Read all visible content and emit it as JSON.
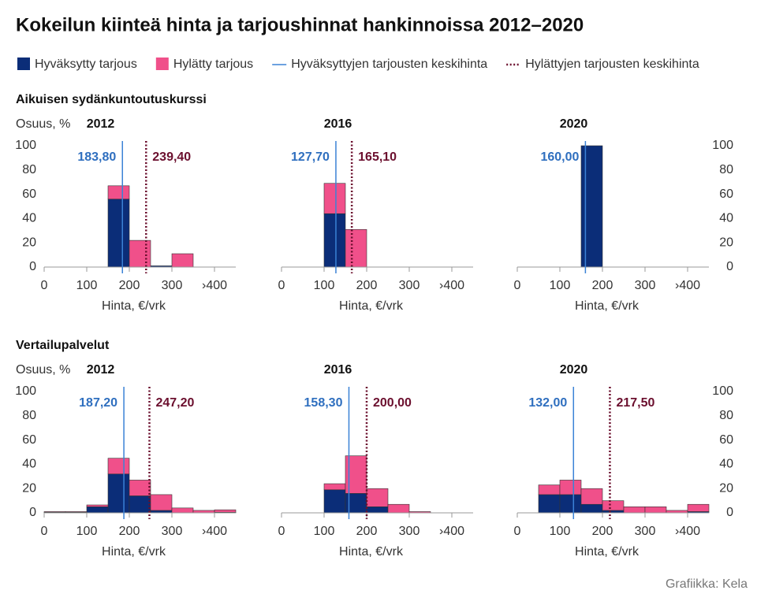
{
  "title": "Kokeilun kiinteä hinta ja tarjoushinnat hankinnoissa 2012–2020",
  "source": "Grafiikka: Kela",
  "chart_data": [
    {
      "type": "histogram",
      "section_title": "Aikuisen sydänkuntoutuskurssi",
      "title": "2012",
      "ylabel": "Osuus, %",
      "xlabel": "Hinta, €/vrk",
      "ytick_side": "left",
      "bins": [
        0,
        50,
        100,
        150,
        200,
        250,
        300,
        350,
        400,
        450
      ],
      "series": [
        {
          "name": "Hyväksytty tarjous",
          "color": "#0b2d78",
          "values": [
            0,
            0,
            0,
            56,
            0,
            1,
            0,
            0,
            0
          ]
        },
        {
          "name": "Hylätty tarjous",
          "color": "#f0508a",
          "values": [
            0,
            0,
            0,
            11,
            22,
            0,
            11,
            0,
            0
          ]
        }
      ],
      "reference_lines": [
        {
          "name": "Hyväksyttyjen tarjousten keskihinta",
          "value": 183.8,
          "label": "183,80",
          "color": "#3b82d6",
          "dotted": false
        },
        {
          "name": "Hylättyjen tarjousten keskihinta",
          "value": 239.4,
          "label": "239,40",
          "color": "#6b0f2e",
          "dotted": true
        }
      ],
      "xlim": [
        0,
        450
      ],
      "xticks": [
        0,
        100,
        200,
        300,
        {
          "value": 400,
          "label": "›400"
        }
      ],
      "ylim": [
        0,
        100
      ],
      "yticks": [
        0,
        20,
        40,
        60,
        80,
        100
      ]
    },
    {
      "type": "histogram",
      "title": "2016",
      "xlabel": "Hinta, €/vrk",
      "ytick_side": "none",
      "bins": [
        0,
        50,
        100,
        150,
        200,
        250,
        300,
        350,
        400,
        450
      ],
      "series": [
        {
          "name": "Hyväksytty tarjous",
          "color": "#0b2d78",
          "values": [
            0,
            0,
            44,
            0,
            0,
            0,
            0,
            0,
            0
          ]
        },
        {
          "name": "Hylätty tarjous",
          "color": "#f0508a",
          "values": [
            0,
            0,
            25,
            31,
            0,
            0,
            0,
            0,
            0
          ]
        }
      ],
      "reference_lines": [
        {
          "name": "Hyväksyttyjen tarjousten keskihinta",
          "value": 127.7,
          "label": "127,70",
          "color": "#3b82d6",
          "dotted": false
        },
        {
          "name": "Hylättyjen tarjousten keskihinta",
          "value": 165.1,
          "label": "165,10",
          "color": "#6b0f2e",
          "dotted": true
        }
      ],
      "xlim": [
        0,
        450
      ],
      "xticks": [
        0,
        100,
        200,
        300,
        {
          "value": 400,
          "label": "›400"
        }
      ],
      "ylim": [
        0,
        100
      ]
    },
    {
      "type": "histogram",
      "title": "2020",
      "xlabel": "Hinta, €/vrk",
      "ytick_side": "right",
      "bins": [
        0,
        50,
        100,
        150,
        200,
        250,
        300,
        350,
        400,
        450
      ],
      "series": [
        {
          "name": "Hyväksytty tarjous",
          "color": "#0b2d78",
          "values": [
            0,
            0,
            0,
            100,
            0,
            0,
            0,
            0,
            0
          ]
        }
      ],
      "reference_lines": [
        {
          "name": "Hyväksyttyjen tarjousten keskihinta",
          "value": 160,
          "label": "160,00",
          "color": "#3b82d6",
          "dotted": false
        }
      ],
      "xlim": [
        0,
        450
      ],
      "xticks": [
        0,
        100,
        200,
        300,
        {
          "value": 400,
          "label": "›400"
        }
      ],
      "ylim": [
        0,
        100
      ],
      "yticks": [
        0,
        20,
        40,
        60,
        80,
        100
      ]
    },
    {
      "type": "histogram",
      "section_title": "Vertailupalvelut",
      "title": "2012",
      "ylabel": "Osuus, %",
      "xlabel": "Hinta, €/vrk",
      "ytick_side": "left",
      "bins": [
        0,
        50,
        100,
        150,
        200,
        250,
        300,
        350,
        400,
        450
      ],
      "series": [
        {
          "name": "Hyväksytty tarjous",
          "color": "#0b2d78",
          "values": [
            0.5,
            0.5,
            5,
            32,
            14,
            2,
            0,
            0,
            0.5
          ]
        },
        {
          "name": "Hylätty tarjous",
          "color": "#f0508a",
          "values": [
            0.5,
            0.5,
            1.5,
            13,
            13,
            13,
            4,
            2,
            2
          ]
        }
      ],
      "reference_lines": [
        {
          "name": "Hyväksyttyjen tarjousten keskihinta",
          "value": 187.2,
          "label": "187,20",
          "color": "#3b82d6",
          "dotted": false
        },
        {
          "name": "Hylättyjen tarjousten keskihinta",
          "value": 247.2,
          "label": "247,20",
          "color": "#6b0f2e",
          "dotted": true
        }
      ],
      "xlim": [
        0,
        450
      ],
      "xticks": [
        0,
        100,
        200,
        300,
        {
          "value": 400,
          "label": "›400"
        }
      ],
      "ylim": [
        0,
        100
      ],
      "yticks": [
        0,
        20,
        40,
        60,
        80,
        100
      ]
    },
    {
      "type": "histogram",
      "title": "2016",
      "xlabel": "Hinta, €/vrk",
      "ytick_side": "none",
      "bins": [
        0,
        50,
        100,
        150,
        200,
        250,
        300,
        350,
        400,
        450
      ],
      "series": [
        {
          "name": "Hyväksytty tarjous",
          "color": "#0b2d78",
          "values": [
            0,
            0,
            19,
            16,
            5,
            0,
            0,
            0,
            0
          ]
        },
        {
          "name": "Hylätty tarjous",
          "color": "#f0508a",
          "values": [
            0,
            0,
            5,
            31,
            15,
            7,
            1,
            0,
            0
          ]
        }
      ],
      "reference_lines": [
        {
          "name": "Hyväksyttyjen tarjousten keskihinta",
          "value": 158.3,
          "label": "158,30",
          "color": "#3b82d6",
          "dotted": false
        },
        {
          "name": "Hylättyjen tarjousten keskihinta",
          "value": 200,
          "label": "200,00",
          "color": "#6b0f2e",
          "dotted": true
        }
      ],
      "xlim": [
        0,
        450
      ],
      "xticks": [
        0,
        100,
        200,
        300,
        {
          "value": 400,
          "label": "›400"
        }
      ],
      "ylim": [
        0,
        100
      ]
    },
    {
      "type": "histogram",
      "title": "2020",
      "xlabel": "Hinta, €/vrk",
      "ytick_side": "right",
      "bins": [
        0,
        50,
        100,
        150,
        200,
        250,
        300,
        350,
        400,
        450
      ],
      "series": [
        {
          "name": "Hyväksytty tarjous",
          "color": "#0b2d78",
          "values": [
            0,
            15,
            15,
            7,
            2,
            0,
            0,
            0,
            1
          ]
        },
        {
          "name": "Hylätty tarjous",
          "color": "#f0508a",
          "values": [
            0,
            8,
            12,
            13,
            8,
            5,
            5,
            2,
            6
          ]
        }
      ],
      "reference_lines": [
        {
          "name": "Hyväksyttyjen tarjousten keskihinta",
          "value": 132,
          "label": "132,00",
          "color": "#3b82d6",
          "dotted": false
        },
        {
          "name": "Hylättyjen tarjousten keskihinta",
          "value": 217.5,
          "label": "217,50",
          "color": "#6b0f2e",
          "dotted": true
        }
      ],
      "xlim": [
        0,
        450
      ],
      "xticks": [
        0,
        100,
        200,
        300,
        {
          "value": 400,
          "label": "›400"
        }
      ],
      "ylim": [
        0,
        100
      ],
      "yticks": [
        0,
        20,
        40,
        60,
        80,
        100
      ]
    }
  ]
}
